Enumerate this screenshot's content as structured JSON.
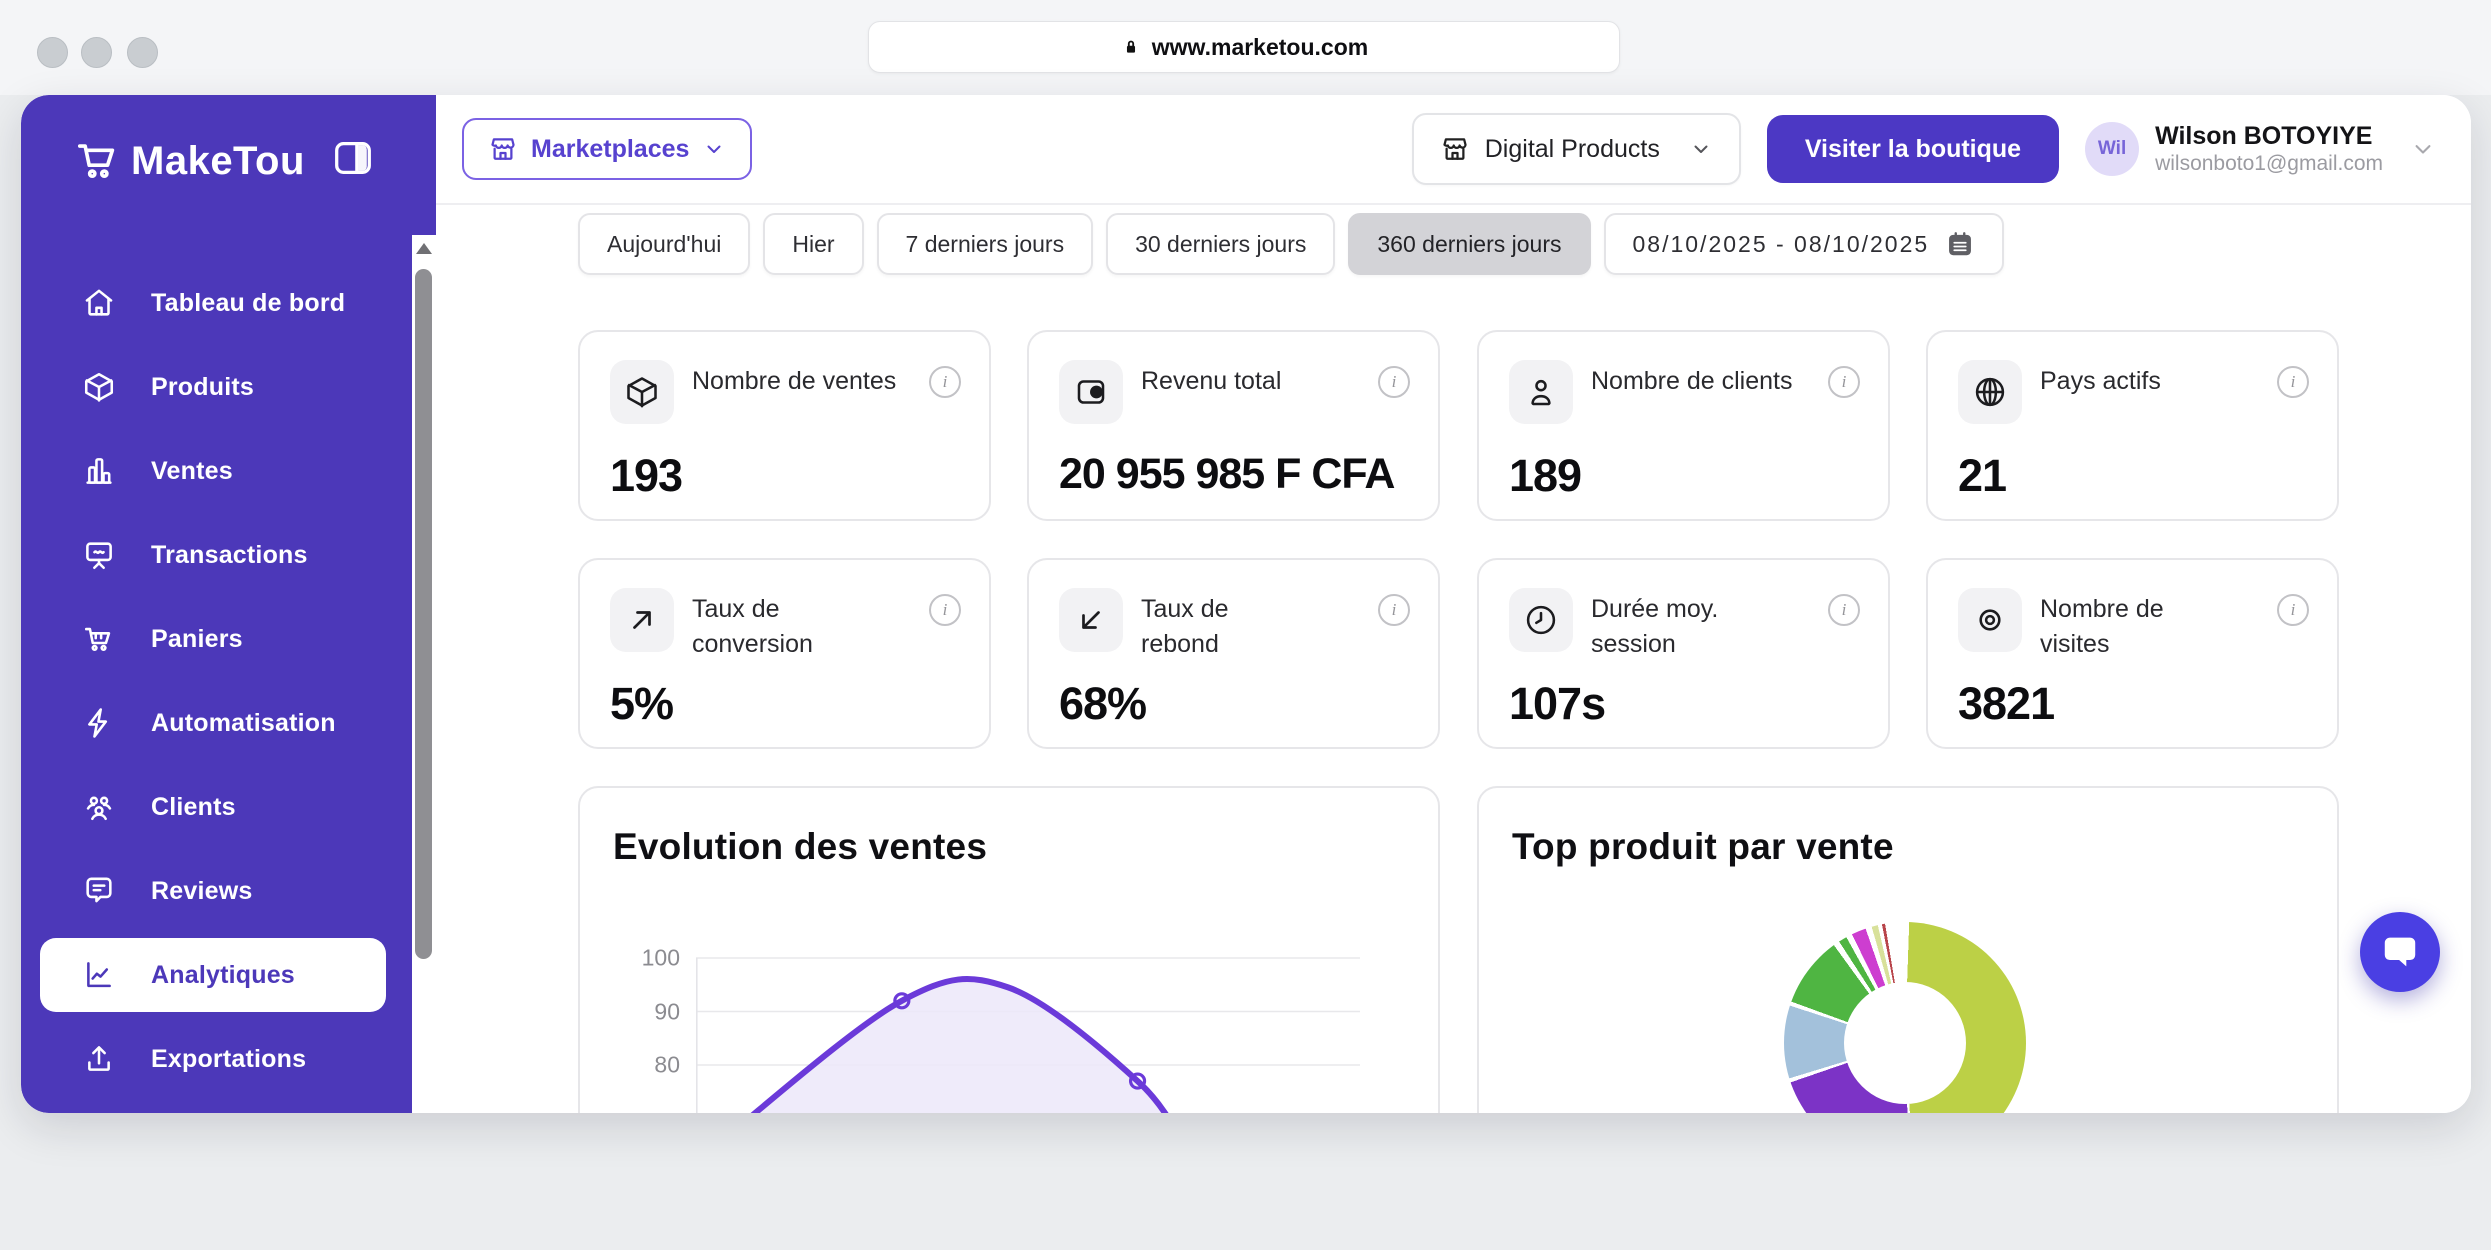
{
  "browser": {
    "url": "www.marketou.com"
  },
  "sidebar": {
    "logo": "MakeTou",
    "items": [
      {
        "label": "Tableau de bord",
        "icon": "home-icon",
        "active": false
      },
      {
        "label": "Produits",
        "icon": "cube-icon",
        "active": false
      },
      {
        "label": "Ventes",
        "icon": "bar-chart-icon",
        "active": false
      },
      {
        "label": "Transactions",
        "icon": "presentation-icon",
        "active": false
      },
      {
        "label": "Paniers",
        "icon": "cart-icon",
        "active": false
      },
      {
        "label": "Automatisation",
        "icon": "zap-icon",
        "active": false
      },
      {
        "label": "Clients",
        "icon": "users-icon",
        "active": false
      },
      {
        "label": "Reviews",
        "icon": "chat-bubble-icon",
        "active": false
      },
      {
        "label": "Analytiques",
        "icon": "line-chart-icon",
        "active": true
      },
      {
        "label": "Exportations",
        "icon": "upload-icon",
        "active": false
      }
    ]
  },
  "topbar": {
    "marketplaces_label": "Marketplaces",
    "store_select_value": "Digital Products",
    "visit_button_label": "Visiter la boutique",
    "user": {
      "initials": "Wil",
      "name": "Wilson BOTOYIYE",
      "email": "wilsonboto1@gmail.com"
    }
  },
  "filters": {
    "chips": [
      "Aujourd'hui",
      "Hier",
      "7 derniers jours",
      "30 derniers jours",
      "360 derniers jours"
    ],
    "active_chip": "360 derniers jours",
    "date_range": "08/10/2025 - 08/10/2025"
  },
  "stats": [
    {
      "label": "Nombre de ventes",
      "value": "193",
      "icon": "cube-icon"
    },
    {
      "label": "Revenu total",
      "value": "20 955 985 F CFA",
      "icon": "wallet-icon"
    },
    {
      "label": "Nombre de clients",
      "value": "189",
      "icon": "user-icon"
    },
    {
      "label": "Pays actifs",
      "value": "21",
      "icon": "globe-icon"
    },
    {
      "label": "Taux de conversion",
      "value": "5%",
      "icon": "arrow-up-right-icon"
    },
    {
      "label": "Taux de rebond",
      "value": "68%",
      "icon": "arrow-down-left-icon"
    },
    {
      "label": "Durée moy. session",
      "value": "107s",
      "icon": "clock-icon"
    },
    {
      "label": "Nombre de visites",
      "value": "3821",
      "icon": "target-eye-icon"
    }
  ],
  "ui": {
    "info_glyph": "i"
  },
  "chart_data": [
    {
      "type": "area",
      "title": "Evolution des ventes",
      "y_ticks": [
        100,
        90,
        80
      ],
      "ylim_visible": [
        72,
        100
      ],
      "grid": true,
      "line_color": "#6b3ad9",
      "fill_color": "#ece8f9",
      "points": [
        {
          "x": 0.04,
          "y": 66,
          "marker": false
        },
        {
          "x": 0.31,
          "y": 92,
          "marker": true
        },
        {
          "x": 0.47,
          "y": 94.5,
          "marker": false
        },
        {
          "x": 0.665,
          "y": 77,
          "marker": true
        },
        {
          "x": 0.74,
          "y": 64,
          "marker": false
        }
      ],
      "note": "x-axis labels clipped below viewport"
    },
    {
      "type": "donut",
      "title": "Top produit par vente",
      "legend_visible": false,
      "slices": [
        {
          "color": "#bcd046",
          "start_deg": 2,
          "end_deg": 176,
          "est_percent": 48.3
        },
        {
          "color": "#7c33c6",
          "start_deg": 178,
          "end_deg": 251,
          "est_percent": 20.3
        },
        {
          "color": "#a3c1db",
          "start_deg": 253,
          "end_deg": 288,
          "est_percent": 9.7
        },
        {
          "color": "#4fb542",
          "start_deg": 290,
          "end_deg": 324,
          "est_percent": 9.4
        },
        {
          "color": "#4fb542",
          "start_deg": 327,
          "end_deg": 331,
          "est_percent": 1.1
        },
        {
          "color": "#cd3ed0",
          "start_deg": 334,
          "end_deg": 341,
          "est_percent": 1.9
        },
        {
          "color": "#d8e19a",
          "start_deg": 344,
          "end_deg": 347,
          "est_percent": 0.8
        },
        {
          "color": "#b8444a",
          "start_deg": 349,
          "end_deg": 350.5,
          "est_percent": 0.4
        }
      ]
    }
  ]
}
